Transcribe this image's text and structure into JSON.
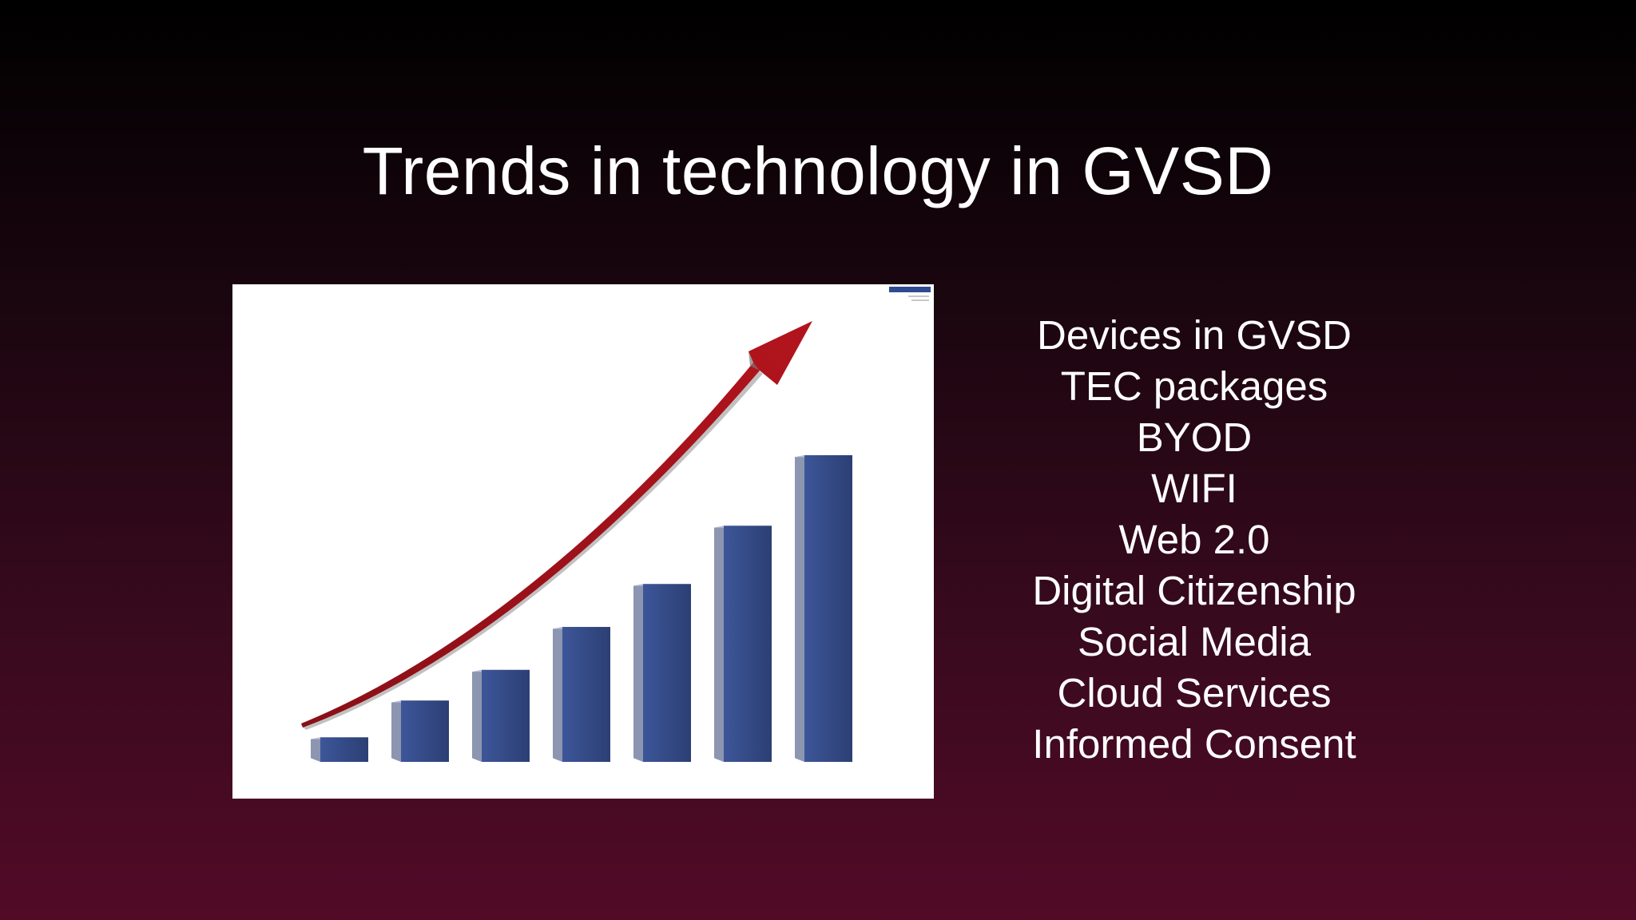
{
  "slide": {
    "title": "Trends in technology in GVSD"
  },
  "figure": {
    "icon": "rising-bar-chart-with-arrow-illustration",
    "background": "#ffffff",
    "bar_color": "#344a84",
    "arrow_color": "#a3121a",
    "bar_count": 7,
    "relative_heights": [
      0.08,
      0.2,
      0.3,
      0.44,
      0.58,
      0.77,
      1.0
    ]
  },
  "topics": [
    "Devices in GVSD",
    "TEC packages",
    "BYOD",
    "WIFI",
    "Web 2.0",
    "Digital Citizenship",
    "Social Media",
    "Cloud Services",
    "Informed Consent"
  ]
}
